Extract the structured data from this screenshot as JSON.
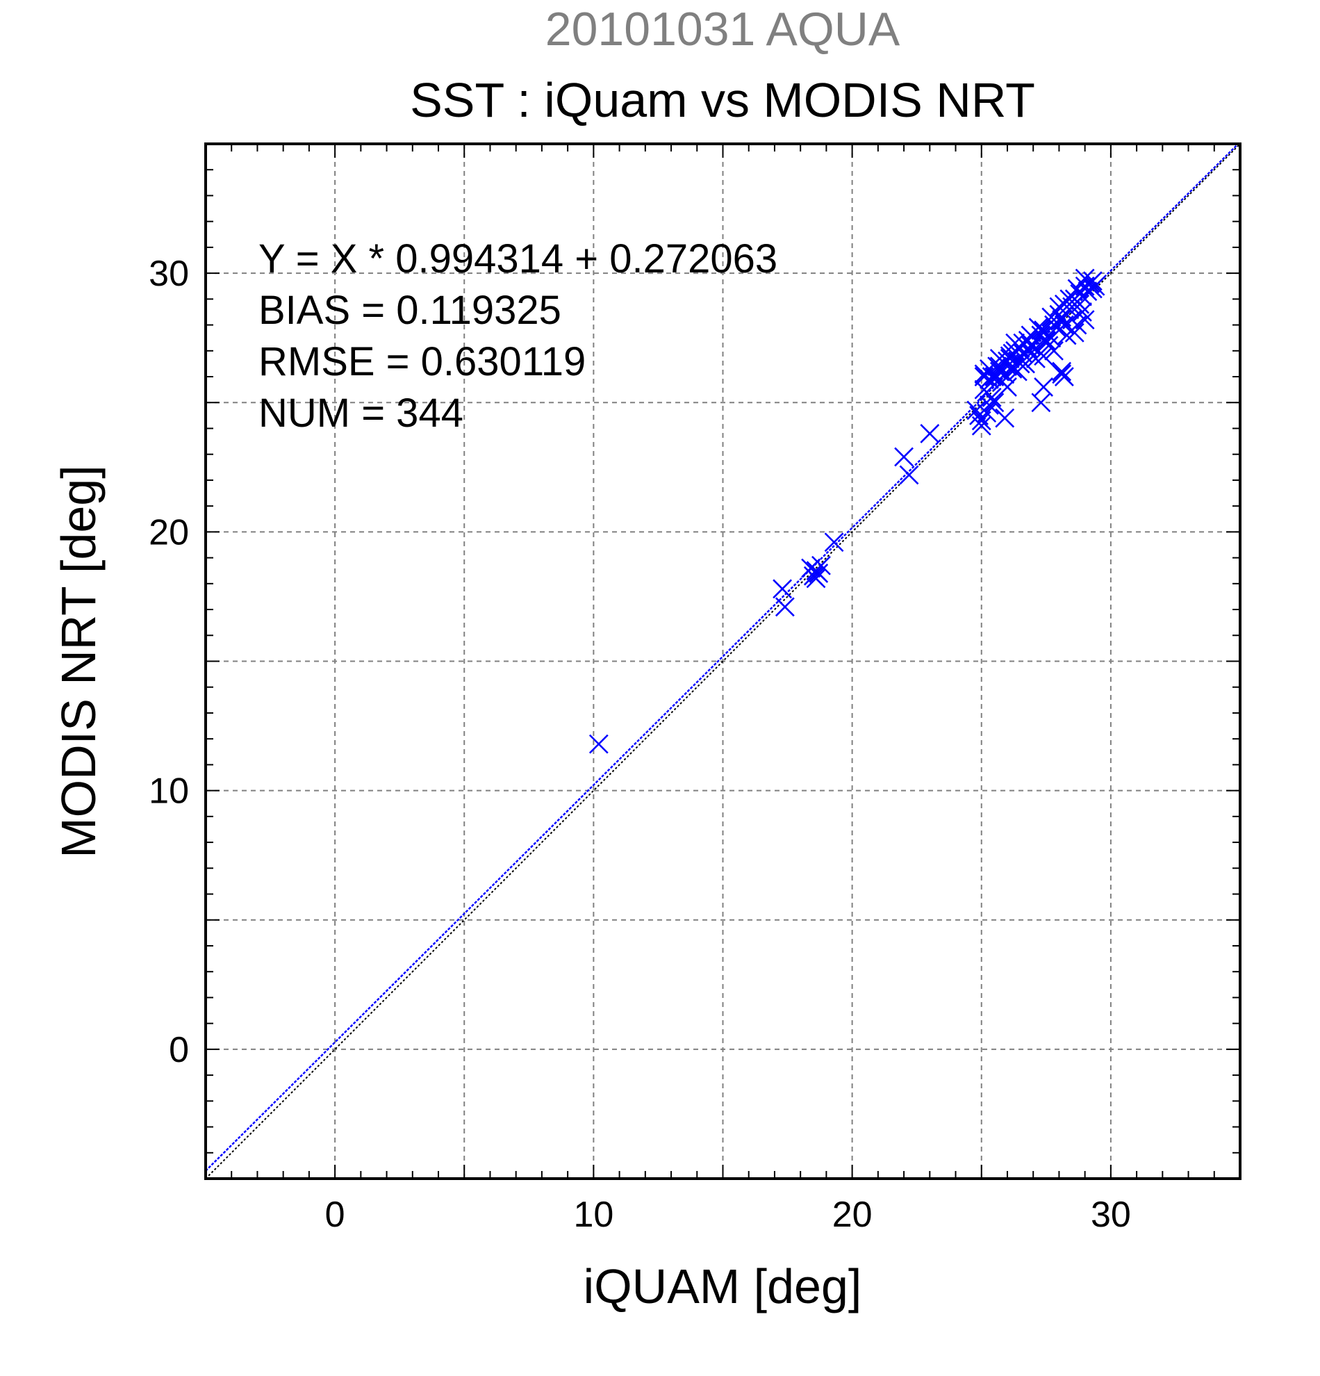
{
  "chart_data": {
    "type": "scatter",
    "subtitle": "20101031 AQUA",
    "title": "SST : iQuam vs MODIS NRT",
    "xlabel": "iQUAM [deg]",
    "ylabel": "MODIS NRT [deg]",
    "xlim": [
      -5,
      35
    ],
    "ylim": [
      -5,
      35
    ],
    "xticks": [
      0,
      10,
      20,
      30
    ],
    "yticks": [
      0,
      10,
      20,
      30
    ],
    "grid": true,
    "annotations": [
      "Y = X * 0.994314 + 0.272063",
      "BIAS = 0.119325",
      "RMSE = 0.630119",
      "NUM = 344"
    ],
    "fit": {
      "slope": 0.994314,
      "intercept": 0.272063,
      "color": "#0000ff"
    },
    "identity_line": {
      "color": "#000000"
    },
    "marker_color": "#0000ff",
    "series": [
      {
        "marker": "x",
        "x": [
          10.2,
          17.3,
          17.4,
          18.4,
          18.5,
          18.6,
          18.7,
          18.8,
          18.6,
          19.3,
          22.0,
          22.2,
          23.0,
          24.8,
          24.9,
          25.0,
          25.0,
          25.1,
          25.1,
          25.2,
          25.3,
          25.4,
          25.5,
          25.6,
          25.8,
          26.0,
          25.9,
          26.2,
          26.4,
          26.6,
          26.8,
          27.0,
          27.2,
          27.4,
          27.6,
          27.8,
          28.0,
          28.2,
          28.4,
          28.6,
          28.8,
          29.0,
          29.2,
          29.3,
          29.4,
          28.9,
          28.7,
          28.5,
          28.3,
          27.9,
          27.5,
          27.3,
          27.1,
          26.7,
          26.3,
          25.7,
          25.3,
          25.5,
          25.9,
          26.1,
          26.5,
          26.9,
          27.7,
          28.1,
          28.1,
          28.2,
          27.3,
          27.4,
          26.0,
          25.2,
          25.8,
          26.4,
          27.0,
          27.6,
          28.2,
          28.8,
          29.1,
          29.0,
          28.6,
          28.0,
          27.4,
          26.8,
          26.2,
          25.6,
          25.1,
          25.4,
          25.7,
          26.0,
          26.3,
          26.6,
          26.9,
          27.2,
          27.5,
          27.8,
          28.1,
          28.4,
          28.7,
          29.0,
          29.3,
          28.9,
          28.5,
          28.1,
          27.7,
          27.3,
          26.9,
          26.5,
          26.1,
          25.7,
          25.3
        ],
        "y": [
          11.8,
          17.8,
          17.1,
          18.6,
          18.3,
          18.5,
          18.4,
          18.7,
          18.2,
          19.6,
          22.9,
          22.2,
          23.8,
          24.7,
          24.5,
          24.3,
          24.1,
          26.0,
          25.5,
          24.6,
          24.9,
          25.2,
          25.0,
          26.0,
          25.8,
          26.4,
          24.4,
          26.3,
          26.6,
          26.9,
          27.1,
          27.2,
          27.0,
          26.8,
          27.6,
          28.0,
          28.4,
          28.8,
          28.6,
          29.0,
          29.2,
          29.5,
          29.6,
          29.7,
          29.5,
          28.5,
          28.0,
          28.2,
          27.6,
          27.9,
          27.4,
          27.6,
          26.7,
          26.5,
          27.3,
          26.2,
          25.9,
          26.0,
          26.1,
          26.7,
          26.5,
          26.9,
          27.5,
          26.2,
          26.1,
          26.0,
          25.0,
          25.6,
          25.6,
          25.4,
          25.8,
          26.2,
          26.8,
          27.2,
          28.0,
          28.8,
          29.3,
          28.2,
          27.7,
          28.7,
          27.8,
          27.4,
          26.9,
          26.4,
          26.1,
          26.0,
          26.4,
          26.6,
          27.0,
          27.3,
          27.6,
          27.9,
          27.3,
          27.0,
          28.3,
          29.0,
          29.4,
          29.8,
          29.4,
          29.1,
          28.7,
          28.2,
          28.3,
          27.8,
          27.2,
          27.1,
          26.8,
          26.7,
          26.3
        ]
      }
    ]
  }
}
